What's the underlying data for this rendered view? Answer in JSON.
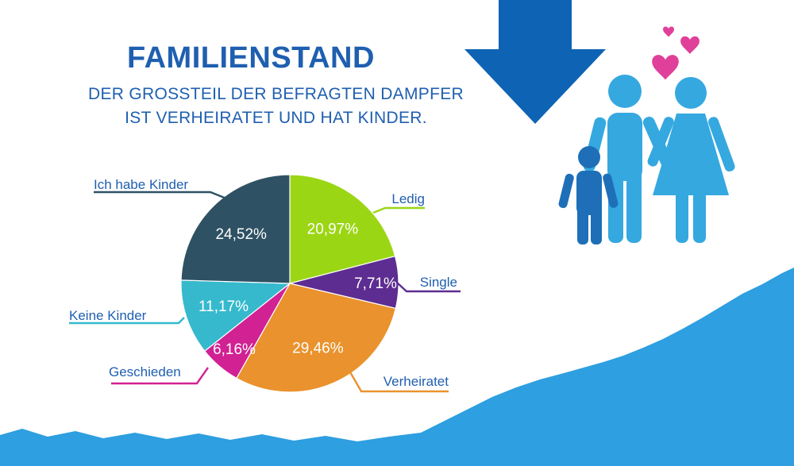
{
  "heading": {
    "title": "FAMILIENSTAND",
    "subtitle_lines": [
      "DER GROSSTEIL DER BEFRAGTEN DAMPFER",
      "IST VERHEIRATET UND HAT KINDER."
    ]
  },
  "colors": {
    "title": "#1f5fb0",
    "arrow": "#0f63b4",
    "wave": "#2e9fe0",
    "adults": "#35a8e0",
    "child": "#1e6fb8",
    "hearts": "#e0409a"
  },
  "icons": [
    "down-arrow-icon",
    "family-icon",
    "heart-icon"
  ],
  "chart_data": {
    "type": "pie",
    "title": "",
    "start": "12 o'clock, clockwise",
    "slices": [
      {
        "label": "Ledig",
        "value": 20.97,
        "display": "20,97%",
        "color": "#9bd615"
      },
      {
        "label": "Single",
        "value": 7.71,
        "display": "7,71%",
        "color": "#5d2d91"
      },
      {
        "label": "Verheiratet",
        "value": 29.46,
        "display": "29,46%",
        "color": "#ea922d"
      },
      {
        "label": "Geschieden",
        "value": 6.16,
        "display": "6,16%",
        "color": "#d12193"
      },
      {
        "label": "Keine Kinder",
        "value": 11.17,
        "display": "11,17%",
        "color": "#36b9cd"
      },
      {
        "label": "Ich habe Kinder",
        "value": 24.52,
        "display": "24,52%",
        "color": "#2f5164"
      }
    ]
  }
}
